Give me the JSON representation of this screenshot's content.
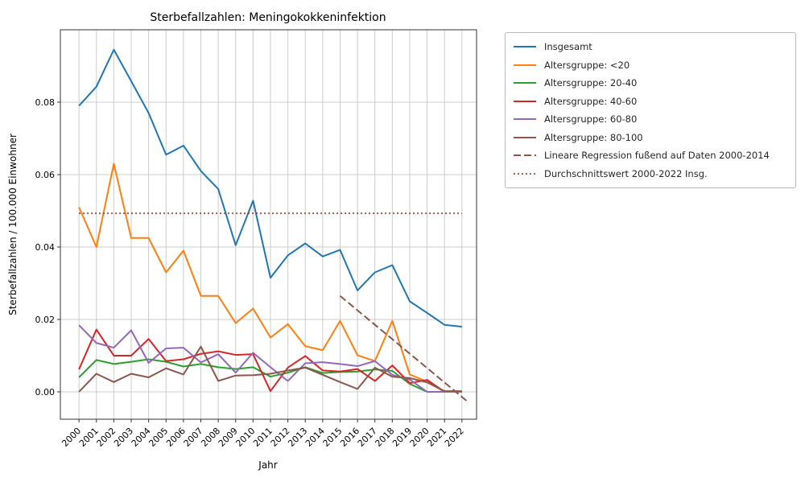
{
  "title": "Sterbefallzahlen: Meningokokkeninfektion",
  "chart_data": {
    "type": "line",
    "title": "Sterbefallzahlen: Meningokokkeninfektion",
    "xlabel": "Jahr",
    "ylabel": "Sterbefallzahlen / 100.000 Einwohner",
    "x": [
      2000,
      2001,
      2002,
      2003,
      2004,
      2005,
      2006,
      2007,
      2008,
      2009,
      2010,
      2011,
      2012,
      2013,
      2014,
      2015,
      2016,
      2017,
      2018,
      2019,
      2020,
      2021,
      2022
    ],
    "xlim": [
      1998.93,
      2022.84
    ],
    "ylim": [
      -0.00756,
      0.1
    ],
    "yticks": [
      0.0,
      0.02,
      0.04,
      0.06,
      0.08
    ],
    "grid": true,
    "legend_position": "outside-upper-right",
    "axis_color": "#333333",
    "grid_color": "#cccccc",
    "series": [
      {
        "name": "Insgesamt",
        "color": "#1f77b4",
        "style": "solid",
        "width": 2,
        "values": [
          0.079,
          0.0843,
          0.0945,
          0.0858,
          0.077,
          0.0655,
          0.068,
          0.061,
          0.056,
          0.0405,
          0.0528,
          0.0315,
          0.0377,
          0.041,
          0.0374,
          0.0392,
          0.028,
          0.033,
          0.035,
          0.025,
          0.0218,
          0.0185,
          0.018
        ]
      },
      {
        "name": "Altersgruppe: <20",
        "color": "#ff7f0e",
        "style": "solid",
        "width": 2,
        "values": [
          0.051,
          0.04,
          0.063,
          0.0425,
          0.0425,
          0.033,
          0.039,
          0.0265,
          0.0265,
          0.019,
          0.023,
          0.015,
          0.0187,
          0.0126,
          0.0115,
          0.0196,
          0.0101,
          0.0085,
          0.0196,
          0.0048,
          0.0028,
          0.0,
          0.0
        ]
      },
      {
        "name": "Altersgruppe: 20-40",
        "color": "#2ca02c",
        "style": "solid",
        "width": 2,
        "values": [
          0.004,
          0.0088,
          0.0077,
          0.0083,
          0.009,
          0.0083,
          0.007,
          0.0077,
          0.0068,
          0.0063,
          0.0068,
          0.0042,
          0.0053,
          0.0068,
          0.0052,
          0.0055,
          0.0056,
          0.0062,
          0.0058,
          0.0022,
          0.0,
          0.0,
          0.0
        ]
      },
      {
        "name": "Altersgruppe: 40-60",
        "color": "#d62728",
        "style": "solid",
        "width": 2,
        "values": [
          0.0062,
          0.0172,
          0.01,
          0.01,
          0.0146,
          0.0085,
          0.009,
          0.0105,
          0.0112,
          0.0102,
          0.0104,
          0.0002,
          0.0067,
          0.0099,
          0.0059,
          0.0056,
          0.0063,
          0.003,
          0.0073,
          0.0024,
          0.0033,
          0.0,
          0.0
        ]
      },
      {
        "name": "Altersgruppe: 60-80",
        "color": "#9467bd",
        "style": "solid",
        "width": 2,
        "values": [
          0.0184,
          0.0135,
          0.0122,
          0.017,
          0.008,
          0.012,
          0.0122,
          0.0081,
          0.0104,
          0.0053,
          0.0108,
          0.0068,
          0.003,
          0.0079,
          0.0082,
          0.0077,
          0.0071,
          0.0085,
          0.0047,
          0.0034,
          0.0,
          0.0,
          0.0
        ]
      },
      {
        "name": "Altersgruppe: 80-100",
        "color": "#8c564b",
        "style": "solid",
        "width": 2,
        "values": [
          0.0,
          0.005,
          0.0027,
          0.005,
          0.004,
          0.0065,
          0.0048,
          0.0125,
          0.003,
          0.0045,
          0.0046,
          0.005,
          0.0059,
          0.0067,
          0.0047,
          0.0027,
          0.0008,
          0.0067,
          0.0042,
          0.0038,
          0.0026,
          0.0002,
          0.0002
        ]
      },
      {
        "name": "Lineare Regression fußend auf Daten 2000-2014",
        "color": "#8c564b",
        "style": "dashed",
        "width": 2,
        "x": [
          2015,
          2022.35
        ],
        "values": [
          0.0265,
          -0.0028
        ]
      },
      {
        "name": "Durchschnittswert 2000-2022 Insg.",
        "color": "#9d4a40",
        "style": "dotted",
        "width": 2,
        "x": [
          2000,
          2022
        ],
        "values": [
          0.0493,
          0.0493
        ]
      }
    ]
  }
}
